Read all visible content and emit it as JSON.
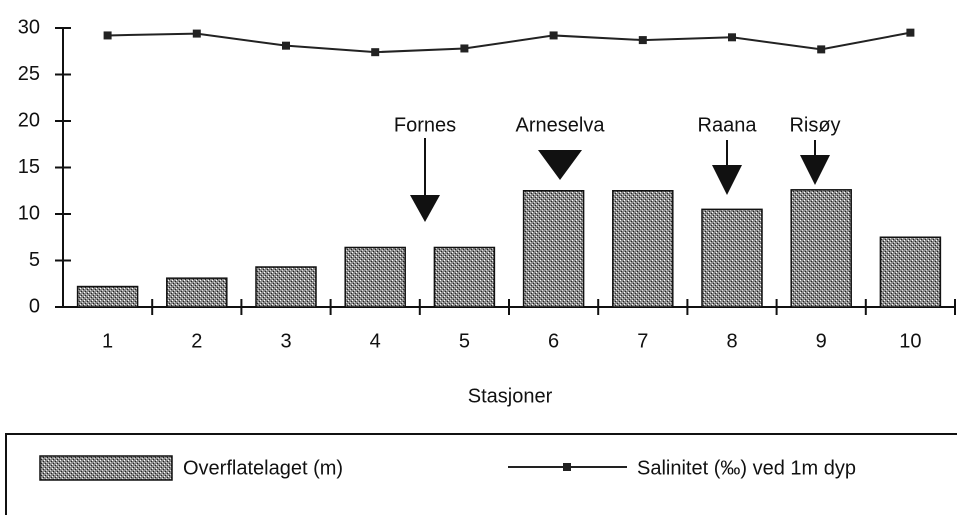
{
  "chart_data": {
    "type": "bar",
    "xlabel": "Stasjoner",
    "categories": [
      "1",
      "2",
      "3",
      "4",
      "5",
      "6",
      "7",
      "8",
      "9",
      "10"
    ],
    "series": [
      {
        "name": "Overflatelaget (m)",
        "type": "bar",
        "color": "#555555",
        "values": [
          2.2,
          3.1,
          4.3,
          6.4,
          6.4,
          12.5,
          12.5,
          10.5,
          12.6,
          7.5
        ]
      },
      {
        "name": "Salinitet (‰) ved 1m dyp",
        "type": "line",
        "color": "#222222",
        "values": [
          29.2,
          29.4,
          28.1,
          27.4,
          27.8,
          29.2,
          28.7,
          29.0,
          27.7,
          29.5
        ]
      }
    ],
    "annotations": [
      "Fornes",
      "Arneselva",
      "Raana",
      "Risøy"
    ],
    "ylim": [
      0,
      30
    ],
    "yticks": [
      0,
      5,
      10,
      15,
      20,
      25,
      30
    ],
    "grid": false
  }
}
